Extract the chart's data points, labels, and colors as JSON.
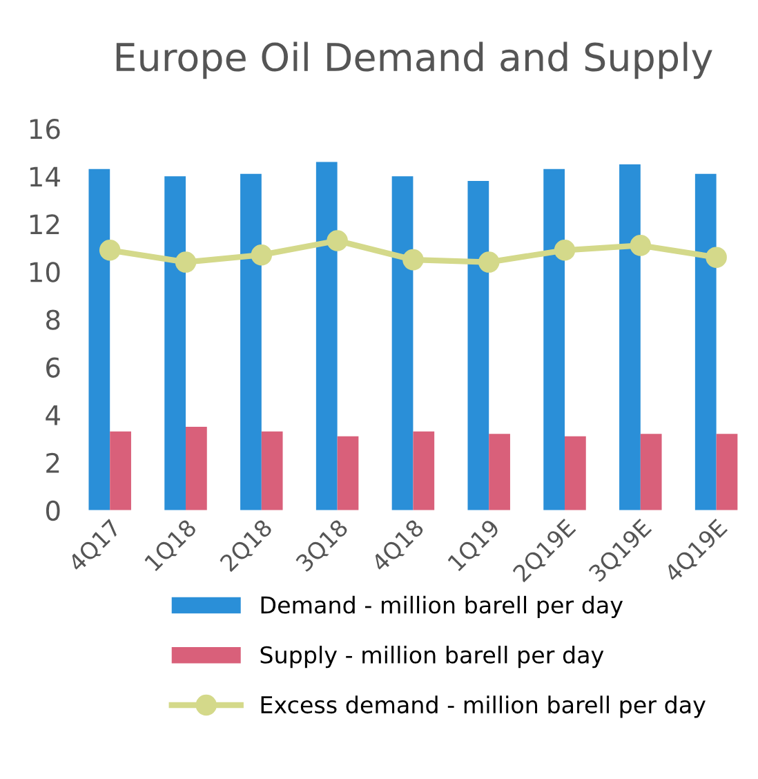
{
  "chart_data": {
    "type": "bar",
    "title": "Europe Oil Demand and Supply",
    "categories": [
      "4Q17",
      "1Q18",
      "2Q18",
      "3Q18",
      "4Q18",
      "1Q19",
      "2Q19E",
      "3Q19E",
      "4Q19E"
    ],
    "series": [
      {
        "name": "Demand - million barell per day",
        "color": "#2a8fd8",
        "values": [
          14.3,
          14.0,
          14.1,
          14.6,
          14.0,
          13.8,
          14.3,
          14.5,
          14.1
        ]
      },
      {
        "name": "Supply - million barell per day",
        "color": "#d9607a",
        "values": [
          3.3,
          3.5,
          3.3,
          3.1,
          3.3,
          3.2,
          3.1,
          3.2,
          3.2
        ]
      },
      {
        "name": "Excess demand - million barell per day",
        "color": "#d4d98a",
        "type": "line",
        "marker": "circle",
        "values": [
          10.9,
          10.4,
          10.7,
          11.3,
          10.5,
          10.4,
          10.9,
          11.1,
          10.6
        ]
      }
    ],
    "ylim": [
      0,
      16
    ],
    "yticks": [
      0,
      2,
      4,
      6,
      8,
      10,
      12,
      14,
      16
    ],
    "grid": false,
    "legend": "bottom"
  }
}
